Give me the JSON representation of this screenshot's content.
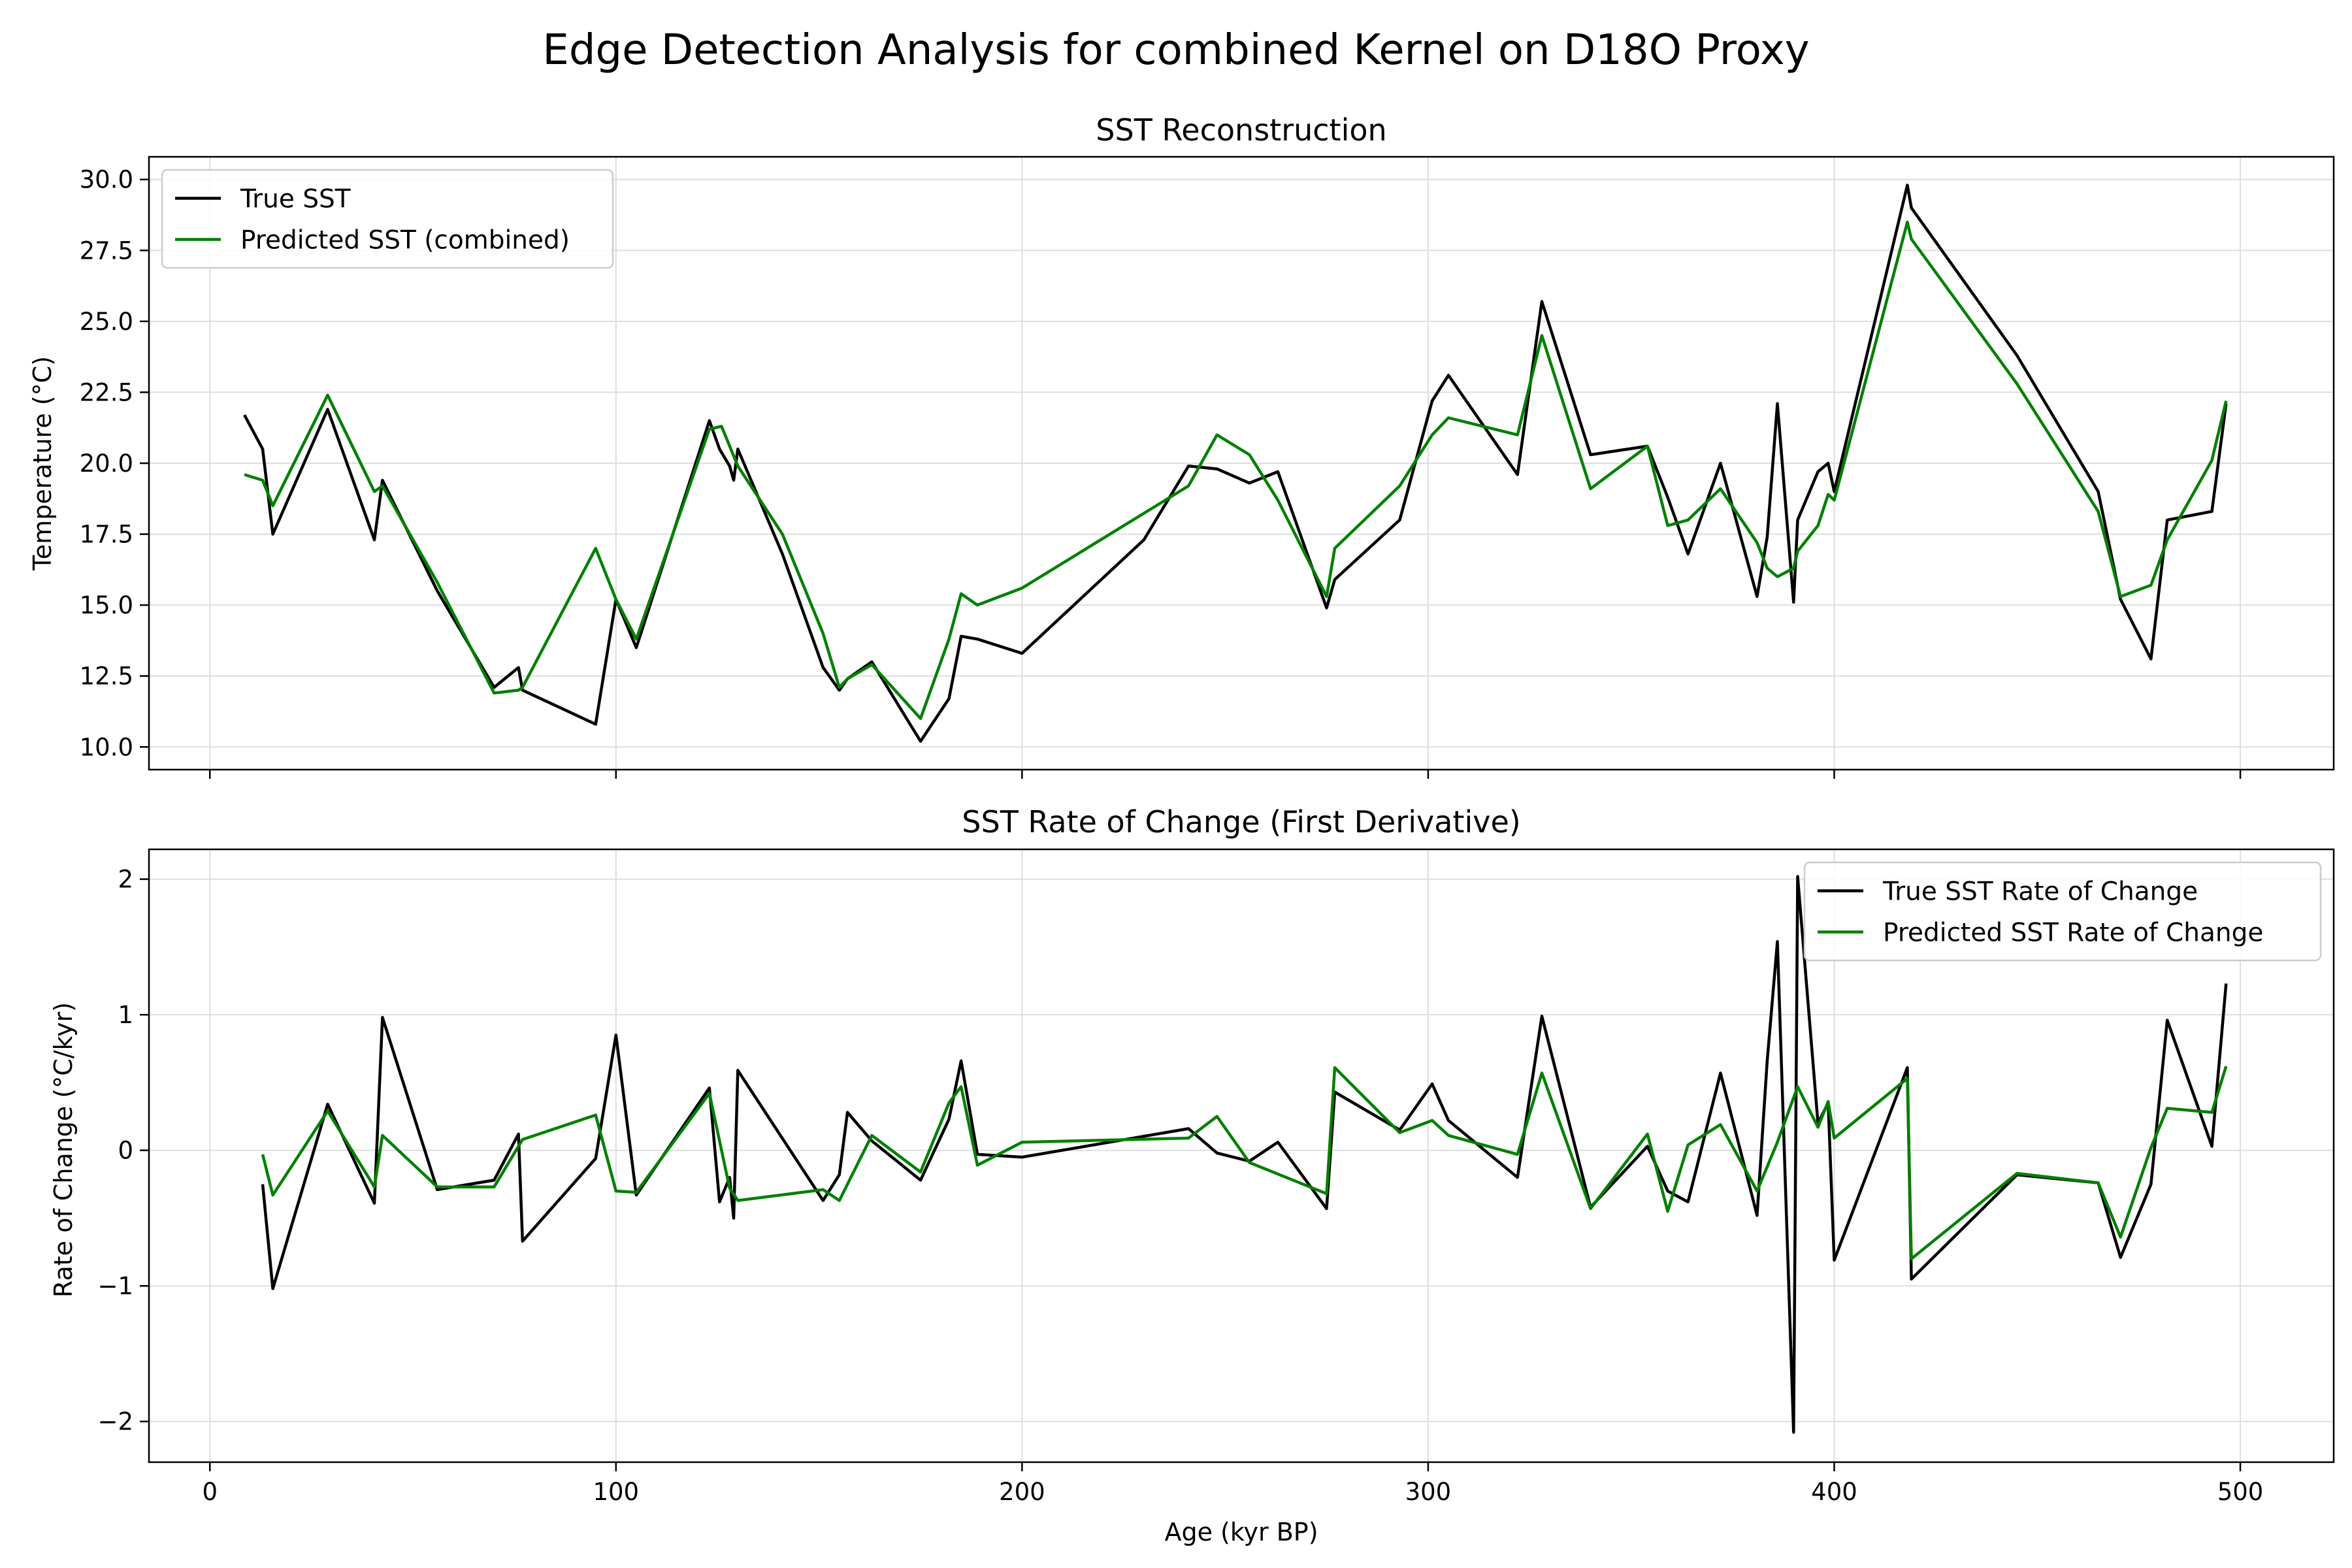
{
  "figure": {
    "title": "Edge Detection Analysis for combined Kernel on D18O Proxy"
  },
  "colors": {
    "true": "#000000",
    "predicted": "#008000"
  },
  "chart_data": [
    {
      "type": "line",
      "title": "SST Reconstruction",
      "xlabel": "",
      "ylabel": "Temperature (°C)",
      "xlim": [
        -15,
        523
      ],
      "ylim": [
        9.2,
        30.8
      ],
      "xticks": [
        0,
        100,
        200,
        300,
        400,
        500
      ],
      "xtick_labels": [
        "",
        "",
        "",
        "",
        "",
        ""
      ],
      "yticks": [
        10.0,
        12.5,
        15.0,
        17.5,
        20.0,
        22.5,
        25.0,
        27.5,
        30.0
      ],
      "ytick_labels": [
        "10.0",
        "12.5",
        "15.0",
        "17.5",
        "20.0",
        "22.5",
        "25.0",
        "27.5",
        "30.0"
      ],
      "grid": true,
      "legend": "top-left",
      "series": [
        {
          "name": "True SST",
          "color": "#000000",
          "x": [
            8.5,
            13,
            15.5,
            29,
            40.5,
            42.5,
            56,
            70,
            76,
            77,
            95,
            100,
            105,
            123,
            125.5,
            128,
            129,
            130,
            141,
            151,
            155,
            157,
            163,
            175,
            182,
            185,
            189,
            200,
            230,
            241,
            248,
            256,
            263,
            275,
            277,
            293,
            301,
            305,
            322,
            328,
            340,
            354,
            359,
            364,
            372,
            381,
            383.5,
            386,
            390,
            391,
            396,
            398.5,
            400,
            418,
            419,
            445,
            465,
            470.5,
            478,
            482,
            493,
            496.5
          ],
          "y": [
            21.7,
            20.5,
            17.5,
            21.9,
            17.3,
            19.4,
            15.5,
            12.1,
            12.8,
            12.0,
            10.8,
            15.2,
            13.5,
            21.5,
            20.5,
            19.9,
            19.4,
            20.5,
            16.8,
            12.8,
            12.0,
            12.4,
            13.0,
            10.2,
            11.7,
            13.9,
            13.8,
            13.3,
            17.3,
            19.9,
            19.8,
            19.3,
            19.7,
            14.9,
            15.9,
            18.0,
            22.2,
            23.1,
            19.6,
            25.7,
            20.3,
            20.6,
            18.8,
            16.8,
            20.0,
            15.3,
            17.4,
            22.1,
            15.1,
            18.0,
            19.7,
            20.0,
            19.0,
            29.8,
            29.0,
            23.8,
            19.0,
            15.2,
            13.1,
            18.0,
            18.3,
            22.1
          ]
        },
        {
          "name": "Predicted SST (combined)",
          "color": "#008000",
          "x": [
            8.5,
            13,
            15.5,
            29,
            40.5,
            42.5,
            56,
            70,
            76,
            77,
            95,
            100,
            105,
            123,
            126,
            130,
            141,
            151,
            155,
            157,
            163,
            175,
            182,
            185,
            189,
            200,
            241,
            248,
            256,
            263,
            275,
            277,
            293,
            301,
            305,
            322,
            328,
            340,
            354,
            359,
            364,
            372,
            381,
            383.5,
            386,
            390,
            391,
            396,
            398.5,
            400,
            418,
            419,
            445,
            465,
            470.5,
            478,
            482,
            493,
            496.5
          ],
          "y": [
            19.6,
            19.4,
            18.5,
            22.4,
            19.0,
            19.2,
            15.8,
            11.9,
            12.0,
            12.1,
            17.0,
            15.2,
            13.8,
            21.2,
            21.3,
            19.9,
            17.5,
            14.0,
            12.1,
            12.4,
            12.9,
            11.0,
            13.8,
            15.4,
            15.0,
            15.6,
            19.2,
            21.0,
            20.3,
            18.7,
            15.3,
            17.0,
            19.2,
            21.0,
            21.6,
            21.0,
            24.5,
            19.1,
            20.6,
            17.8,
            18.0,
            19.1,
            17.2,
            16.3,
            16.0,
            16.3,
            16.9,
            17.8,
            18.9,
            18.7,
            28.5,
            27.9,
            22.8,
            18.3,
            15.3,
            15.7,
            17.3,
            20.1,
            22.2
          ]
        }
      ]
    },
    {
      "type": "line",
      "title": "SST Rate of Change (First Derivative)",
      "xlabel": "Age (kyr BP)",
      "ylabel": "Rate of Change (°C/kyr)",
      "xlim": [
        -15,
        523
      ],
      "ylim": [
        -2.3,
        2.22
      ],
      "xticks": [
        0,
        100,
        200,
        300,
        400,
        500
      ],
      "xtick_labels": [
        "0",
        "100",
        "200",
        "300",
        "400",
        "500"
      ],
      "yticks": [
        -2,
        -1,
        0,
        1,
        2
      ],
      "ytick_labels": [
        "−2",
        "−1",
        "0",
        "1",
        "2"
      ],
      "grid": true,
      "legend": "top-right",
      "series": [
        {
          "name": "True SST Rate of Change",
          "color": "#000000",
          "x": [
            13,
            15.5,
            29,
            40.5,
            42.5,
            56,
            70,
            76,
            77,
            95,
            100,
            105,
            123,
            125.5,
            128,
            129,
            130,
            151,
            155,
            157,
            163,
            175,
            182,
            185,
            189,
            200,
            241,
            248,
            256,
            263,
            275,
            277,
            293,
            301,
            305,
            322,
            328,
            340,
            354,
            359,
            364,
            372,
            381,
            383.5,
            386,
            390,
            391,
            396,
            398.5,
            400,
            418,
            419,
            445,
            465,
            470.5,
            478,
            482,
            493,
            496.5
          ],
          "y": [
            -0.25,
            -1.02,
            0.34,
            -0.39,
            0.98,
            -0.29,
            -0.22,
            0.12,
            -0.67,
            -0.06,
            0.85,
            -0.33,
            0.46,
            -0.38,
            -0.2,
            -0.5,
            0.59,
            -0.37,
            -0.18,
            0.28,
            0.07,
            -0.22,
            0.23,
            0.66,
            -0.03,
            -0.05,
            0.16,
            -0.02,
            -0.08,
            0.06,
            -0.43,
            0.43,
            0.15,
            0.49,
            0.22,
            -0.2,
            0.99,
            -0.42,
            0.03,
            -0.3,
            -0.38,
            0.57,
            -0.48,
            0.66,
            1.54,
            -2.08,
            2.02,
            0.2,
            0.35,
            -0.81,
            0.61,
            -0.95,
            -0.18,
            -0.24,
            -0.79,
            -0.25,
            0.96,
            0.03,
            1.23
          ]
        },
        {
          "name": "Predicted SST Rate of Change",
          "color": "#008000",
          "x": [
            13,
            15.5,
            29,
            40.5,
            42.5,
            56,
            70,
            77,
            95,
            100,
            105,
            123,
            126,
            128,
            130,
            151,
            155,
            163,
            175,
            182,
            185,
            189,
            200,
            241,
            248,
            256,
            275,
            277,
            293,
            301,
            305,
            322,
            328,
            340,
            354,
            359,
            364,
            372,
            381,
            386,
            391,
            396,
            398.5,
            400,
            418,
            419,
            445,
            465,
            470.5,
            478,
            482,
            493,
            496.5
          ],
          "y": [
            -0.03,
            -0.33,
            0.29,
            -0.27,
            0.11,
            -0.27,
            -0.27,
            0.08,
            0.26,
            -0.3,
            -0.31,
            0.42,
            0.0,
            -0.28,
            -0.37,
            -0.29,
            -0.37,
            0.11,
            -0.16,
            0.35,
            0.47,
            -0.11,
            0.06,
            0.09,
            0.25,
            -0.09,
            -0.32,
            0.61,
            0.13,
            0.22,
            0.11,
            -0.03,
            0.57,
            -0.43,
            0.12,
            -0.45,
            0.04,
            0.19,
            -0.3,
            0.06,
            0.47,
            0.17,
            0.36,
            0.09,
            0.53,
            -0.8,
            -0.17,
            -0.24,
            -0.64,
            0.02,
            0.31,
            0.28,
            0.62
          ]
        }
      ]
    }
  ]
}
